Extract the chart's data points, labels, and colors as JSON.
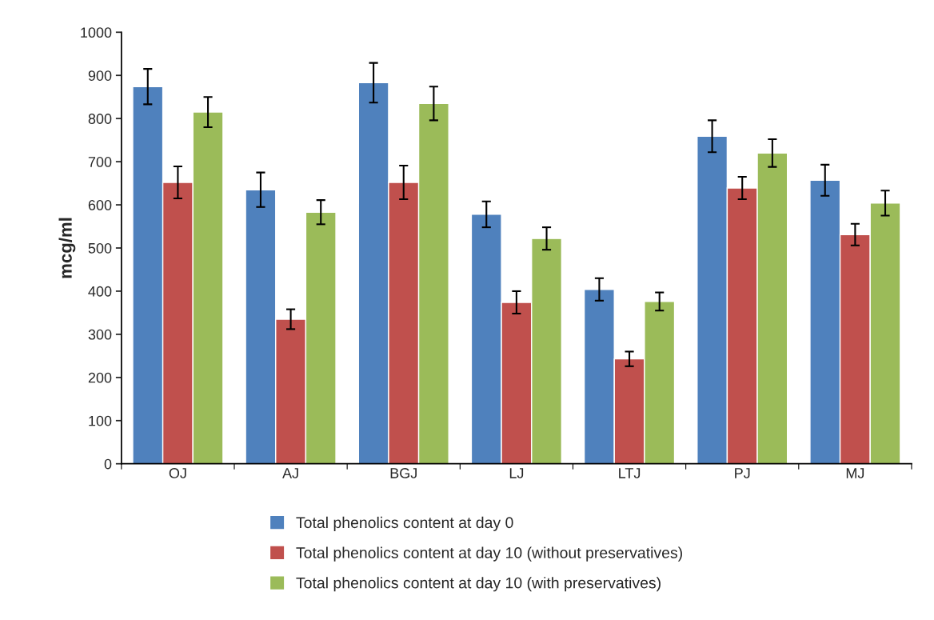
{
  "chart_data": {
    "type": "bar",
    "ylabel": "mcg/ml",
    "categories": [
      "OJ",
      "AJ",
      "BGJ",
      "LJ",
      "LTJ",
      "PJ",
      "MJ"
    ],
    "series": [
      {
        "name": "Total phenolics content at day 0",
        "color": "#4f81bd",
        "values": [
          874,
          635,
          883,
          578,
          404,
          759,
          657
        ],
        "errors": [
          41,
          40,
          46,
          30,
          26,
          37,
          36
        ]
      },
      {
        "name": "Total phenolics content at day 10 (without preservatives)",
        "color": "#c0504d",
        "values": [
          652,
          335,
          652,
          374,
          243,
          639,
          531
        ],
        "errors": [
          37,
          23,
          39,
          26,
          17,
          26,
          25
        ]
      },
      {
        "name": "Total phenolics content at day 10 (with preservatives)",
        "color": "#9bbb59",
        "values": [
          815,
          583,
          835,
          522,
          376,
          720,
          604
        ],
        "errors": [
          35,
          28,
          39,
          26,
          21,
          32,
          29
        ]
      }
    ],
    "ylim": [
      0,
      1000
    ],
    "yticks": [
      0,
      100,
      200,
      300,
      400,
      500,
      600,
      700,
      800,
      900,
      1000
    ],
    "grid": false,
    "legend": "bottom"
  }
}
